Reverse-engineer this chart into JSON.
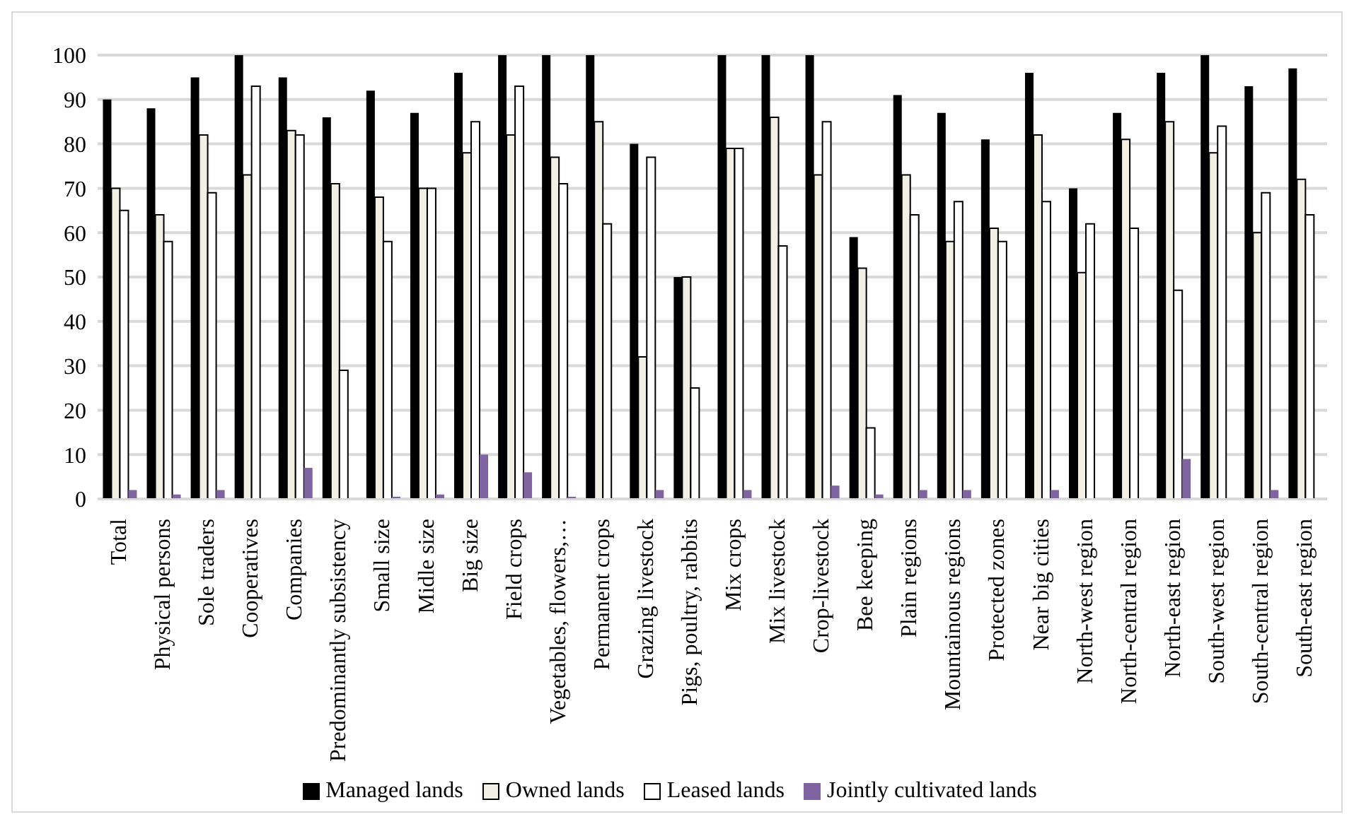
{
  "chart_data": {
    "type": "bar",
    "categories": [
      "Total",
      "Physical persons",
      "Sole traders",
      "Cooperatives",
      "Companies",
      "Predominantly subsistency",
      "Small size",
      "Midle size",
      "Big size",
      "Field crops",
      "Vegetables, flowers,…",
      "Permanent crops",
      "Grazing livestock",
      "Pigs, poultry, rabbits",
      "Mix crops",
      "Mix livestock",
      "Crop-livestock",
      "Bee keeping",
      "Plain regions",
      "Mountainous regions",
      "Protected zones",
      "Near big cities",
      "North-west region",
      "North-central region",
      "North-east region",
      "South-west region",
      "South-central region",
      "South-east region"
    ],
    "series": [
      {
        "name": "Managed lands",
        "color": "#000000",
        "values": [
          90,
          88,
          95,
          100,
          95,
          86,
          92,
          87,
          96,
          100,
          100,
          100,
          80,
          50,
          100,
          100,
          100,
          59,
          91,
          87,
          81,
          96,
          70,
          87,
          96,
          100,
          93,
          97
        ]
      },
      {
        "name": "Owned lands",
        "color": "#f2efe4",
        "values": [
          70,
          64,
          82,
          73,
          83,
          71,
          68,
          70,
          78,
          82,
          77,
          85,
          32,
          50,
          79,
          86,
          73,
          52,
          73,
          58,
          61,
          82,
          51,
          81,
          85,
          78,
          60,
          72
        ]
      },
      {
        "name": "Leased lands",
        "color": "#ffffff",
        "values": [
          65,
          58,
          69,
          93,
          82,
          29,
          58,
          70,
          85,
          93,
          71,
          62,
          77,
          25,
          79,
          57,
          85,
          16,
          64,
          67,
          58,
          67,
          62,
          61,
          47,
          84,
          69,
          64
        ]
      },
      {
        "name": "Jointly cultivated lands",
        "color": "#8064a2",
        "values": [
          2,
          1,
          2,
          0,
          7,
          0,
          0.5,
          1,
          10,
          6,
          0.5,
          0,
          2,
          0,
          2,
          0,
          3,
          1,
          2,
          2,
          0,
          2,
          0,
          0,
          9,
          0,
          2,
          0
        ]
      }
    ],
    "ylim": [
      0,
      100
    ],
    "yticks": [
      0,
      10,
      20,
      30,
      40,
      50,
      60,
      70,
      80,
      90,
      100
    ],
    "grid": "y",
    "legend": "bottom"
  }
}
